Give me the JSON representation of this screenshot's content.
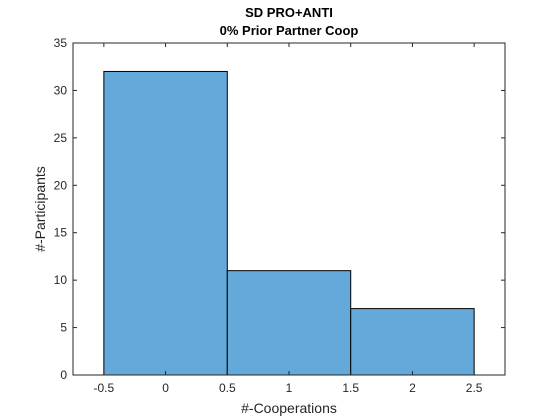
{
  "chart_data": {
    "type": "bar",
    "title": "SD PRO+ANTI",
    "subtitle": "0% Prior Partner Coop",
    "xlabel": "#-Cooperations",
    "ylabel": "#-Participants",
    "categories": [
      "0",
      "1",
      "2"
    ],
    "bin_edges": [
      -0.5,
      0.5,
      1.5,
      2.5
    ],
    "values": [
      32,
      11,
      7
    ],
    "xlim": [
      -0.75,
      2.75
    ],
    "ylim": [
      0,
      35
    ],
    "xticks": [
      -0.5,
      0,
      0.5,
      1,
      1.5,
      2,
      2.5
    ],
    "yticks": [
      0,
      5,
      10,
      15,
      20,
      25,
      30,
      35
    ],
    "grid": false,
    "bar_color": "#64a9da",
    "edge_color": "#000000"
  }
}
